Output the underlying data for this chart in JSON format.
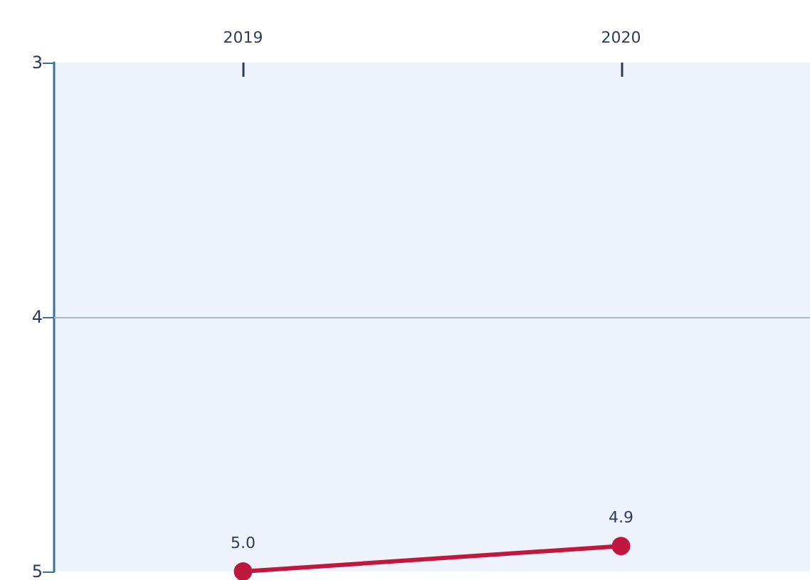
{
  "chart_data": {
    "type": "line",
    "categories": [
      "2019",
      "2020"
    ],
    "series": [
      {
        "color": "#c0173f",
        "values": [
          5.0,
          4.9
        ],
        "value_labels": [
          "5.0",
          "4.9"
        ]
      }
    ],
    "ylim": [
      5,
      3
    ],
    "yticks": [
      3,
      4,
      5
    ],
    "ref_lines": [
      {
        "axis": "y",
        "value": 4,
        "color": "#9db9d8",
        "line_style": "solid"
      }
    ],
    "marker": "circle",
    "line_style": "solid"
  }
}
